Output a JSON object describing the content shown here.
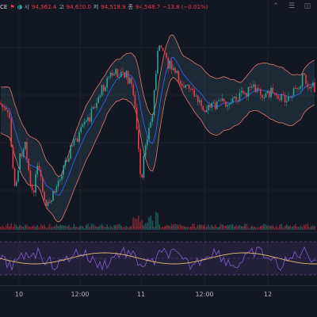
{
  "header": {
    "symbol_fragment": "CE",
    "open_label": "시",
    "open_value": "94,562.4",
    "high_label": "고",
    "high_value": "94,620.0",
    "low_label": "저",
    "low_value": "94,518.9",
    "close_label": "종",
    "close_value": "94,548.7",
    "change": "−13.8 (−0.01%)"
  },
  "time_axis": {
    "ticks": [
      "10",
      "12:00",
      "11",
      "12:00",
      "12"
    ]
  },
  "icons": [
    "collapse-icon",
    "settings-icon",
    "screenshot-icon"
  ],
  "colors": {
    "background": "#131722",
    "up": "#26a69a",
    "down": "#f23645",
    "band": "#e07a6a",
    "ma": "#2962ff",
    "rsi": "#7e57c2",
    "rsi_ma": "#e6c27a"
  },
  "chart_data": {
    "type": "candlestick",
    "indicators": [
      "bollinger-bands",
      "moving-average",
      "volume",
      "rsi"
    ],
    "grid": true
  }
}
